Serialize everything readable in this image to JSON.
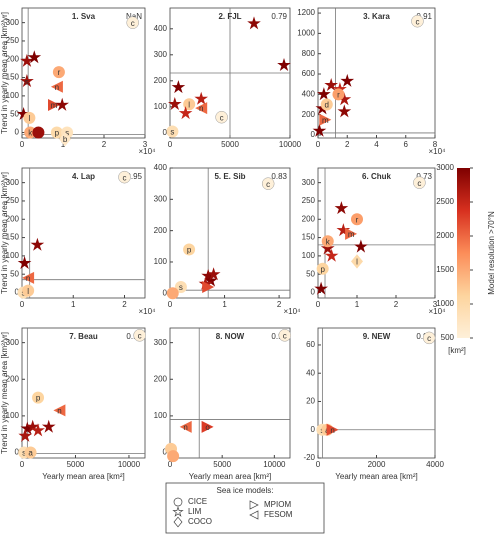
{
  "chart_data": [
    {
      "type": "scatter",
      "title": "1. Sva",
      "annotation": "NaN",
      "ylabel": "Trend in yearly mean area [km²/yr]",
      "xlim": [
        0,
        30000
      ],
      "ylim": [
        -15,
        340
      ],
      "xticks": [
        0,
        {
          "value": 10000,
          "label": "1"
        },
        {
          "value": 20000,
          "label": "2"
        },
        {
          "value": 30000,
          "label": "3"
        }
      ],
      "xmultiplier": "×10⁴",
      "yticks": [
        0,
        50,
        100,
        150,
        200,
        250,
        300
      ],
      "ref_x": 1500,
      "ref_y": -5,
      "points": [
        {
          "x": 27000,
          "y": 300,
          "label": "c",
          "marker": "o",
          "resolution": 500
        },
        {
          "x": 1200,
          "y": 195,
          "marker": "*",
          "resolution": 2800
        },
        {
          "x": 3000,
          "y": 205,
          "marker": "*",
          "resolution": 3000
        },
        {
          "x": 1200,
          "y": 140,
          "label": "s",
          "marker": "*",
          "resolution": 2800
        },
        {
          "x": 400,
          "y": 50,
          "marker": "*",
          "resolution": 3000
        },
        {
          "x": 1800,
          "y": 40,
          "label": "l",
          "marker": "o",
          "resolution": 1200
        },
        {
          "x": 2000,
          "y": 0,
          "label": "k",
          "marker": "o",
          "resolution": 1500
        },
        {
          "x": 4000,
          "y": 0,
          "marker": "o",
          "resolution": 2800
        },
        {
          "x": 9000,
          "y": 165,
          "label": "r",
          "marker": "o",
          "resolution": 1500
        },
        {
          "x": 8500,
          "y": 125,
          "label": "n",
          "marker": "<",
          "resolution": 2000
        },
        {
          "x": 7800,
          "y": 75,
          "label": "m",
          "marker": ">",
          "resolution": 2200
        },
        {
          "x": 9800,
          "y": 75,
          "marker": "*",
          "resolution": 2900
        },
        {
          "x": 8500,
          "y": 0,
          "label": "p",
          "marker": "o",
          "resolution": 1000
        },
        {
          "x": 11000,
          "y": 0,
          "label": "s",
          "marker": "o",
          "resolution": 800
        },
        {
          "x": 10500,
          "y": -18,
          "label": "b",
          "marker": "d",
          "resolution": 700
        }
      ]
    },
    {
      "type": "scatter",
      "title": "2. FJL",
      "annotation": "0.79",
      "xlim": [
        0,
        10000
      ],
      "ylim": [
        -20,
        480
      ],
      "xticks": [
        0,
        5000,
        10000
      ],
      "yticks": [
        0,
        100,
        200,
        300,
        400
      ],
      "ref_x": 5000,
      "ref_y": 230,
      "points": [
        {
          "x": 7000,
          "y": 420,
          "marker": "*",
          "resolution": 2900
        },
        {
          "x": 9500,
          "y": 260,
          "marker": "*",
          "resolution": 3000
        },
        {
          "x": 700,
          "y": 175,
          "marker": "*",
          "resolution": 3000
        },
        {
          "x": 400,
          "y": 110,
          "marker": "*",
          "resolution": 2800
        },
        {
          "x": 1600,
          "y": 110,
          "label": "l",
          "marker": "o",
          "resolution": 1200
        },
        {
          "x": 2600,
          "y": 130,
          "marker": "*",
          "resolution": 2600
        },
        {
          "x": 1300,
          "y": 75,
          "marker": "*",
          "resolution": 2500
        },
        {
          "x": 2600,
          "y": 95,
          "label": "n",
          "marker": "<",
          "resolution": 2000
        },
        {
          "x": 200,
          "y": 5,
          "label": "s",
          "marker": "o",
          "resolution": 900
        },
        {
          "x": 4300,
          "y": 60,
          "label": "c",
          "marker": "o",
          "resolution": 500
        }
      ]
    },
    {
      "type": "scatter",
      "title": "3. Kara",
      "annotation": "0.91",
      "xlim": [
        0,
        80000
      ],
      "ylim": [
        -30,
        1250
      ],
      "xticks": [
        0,
        {
          "value": 20000,
          "label": "2"
        },
        {
          "value": 40000,
          "label": "4"
        },
        {
          "value": 60000,
          "label": "6"
        },
        {
          "value": 80000,
          "label": "8"
        }
      ],
      "xmultiplier": "×10⁴",
      "yticks": [
        0,
        200,
        400,
        600,
        800,
        1000,
        1200
      ],
      "ref_x": 12000,
      "ref_y": 20,
      "points": [
        {
          "x": 68000,
          "y": 1120,
          "label": "c",
          "marker": "o",
          "resolution": 500
        },
        {
          "x": 4000,
          "y": 400,
          "marker": "*",
          "resolution": 3000
        },
        {
          "x": 9000,
          "y": 490,
          "marker": "*",
          "resolution": 2800
        },
        {
          "x": 15000,
          "y": 450,
          "marker": "*",
          "resolution": 2500
        },
        {
          "x": 20000,
          "y": 530,
          "marker": "*",
          "resolution": 3000
        },
        {
          "x": 18000,
          "y": 350,
          "marker": "*",
          "resolution": 2700
        },
        {
          "x": 18000,
          "y": 230,
          "marker": "*",
          "resolution": 2900
        },
        {
          "x": 3000,
          "y": 260,
          "marker": "*",
          "resolution": 3000
        },
        {
          "x": 1000,
          "y": 40,
          "marker": "*",
          "resolution": 3000
        },
        {
          "x": 6000,
          "y": 300,
          "label": "d",
          "marker": "o",
          "resolution": 1200
        },
        {
          "x": 14000,
          "y": 400,
          "label": "r",
          "marker": "o",
          "resolution": 1600
        },
        {
          "x": 5000,
          "y": 150,
          "label": "m",
          "marker": ">",
          "resolution": 2000
        }
      ]
    },
    {
      "type": "scatter",
      "title": "4. Lap",
      "annotation": "0.95",
      "ylabel": "Trend in yearly mean area [km²/yr]",
      "xlim": [
        0,
        24000
      ],
      "ylim": [
        -15,
        340
      ],
      "xticks": [
        0,
        {
          "value": 10000,
          "label": "1"
        },
        {
          "value": 20000,
          "label": "2"
        }
      ],
      "xmultiplier": "×10⁴",
      "yticks": [
        0,
        50,
        100,
        150,
        200,
        250,
        300
      ],
      "ref_x": 1500,
      "ref_y": 35,
      "points": [
        {
          "x": 20000,
          "y": 315,
          "label": "c",
          "marker": "o",
          "resolution": 500
        },
        {
          "x": 3000,
          "y": 130,
          "marker": "*",
          "resolution": 2900
        },
        {
          "x": 500,
          "y": 80,
          "marker": "*",
          "resolution": 3000
        },
        {
          "x": 1200,
          "y": 40,
          "label": "n",
          "marker": "<",
          "resolution": 2000
        },
        {
          "x": 300,
          "y": 0,
          "label": "s",
          "marker": "o",
          "resolution": 900
        },
        {
          "x": 1200,
          "y": 5,
          "label": "l",
          "marker": "o",
          "resolution": 1200
        }
      ]
    },
    {
      "type": "scatter",
      "title": "5. E. Sib",
      "annotation": "0.83",
      "xlim": [
        0,
        22000
      ],
      "ylim": [
        -15,
        400
      ],
      "xticks": [
        0,
        {
          "value": 10000,
          "label": "1"
        },
        {
          "value": 20000,
          "label": "2"
        }
      ],
      "xmultiplier": "×10⁴",
      "yticks": [
        0,
        100,
        200,
        300,
        400
      ],
      "ref_x": 7000,
      "ref_y": 10,
      "points": [
        {
          "x": 18000,
          "y": 350,
          "label": "c",
          "marker": "o",
          "resolution": 500
        },
        {
          "x": 3500,
          "y": 140,
          "label": "p",
          "marker": "o",
          "resolution": 1100
        },
        {
          "x": 7000,
          "y": 55,
          "marker": "*",
          "resolution": 2900
        },
        {
          "x": 7500,
          "y": 40,
          "marker": "*",
          "resolution": 3000
        },
        {
          "x": 6500,
          "y": 30,
          "marker": "*",
          "resolution": 2700
        },
        {
          "x": 8000,
          "y": 60,
          "marker": "*",
          "resolution": 2800
        },
        {
          "x": 2000,
          "y": 20,
          "label": "s",
          "marker": "o",
          "resolution": 900
        },
        {
          "x": 500,
          "y": 0,
          "marker": "o",
          "resolution": 1500
        },
        {
          "x": 7000,
          "y": 20,
          "marker": ">",
          "resolution": 2200
        }
      ]
    },
    {
      "type": "scatter",
      "title": "6. Chuk",
      "annotation": "0.73",
      "xlim": [
        0,
        30000
      ],
      "ylim": [
        -15,
        340
      ],
      "xticks": [
        0,
        {
          "value": 10000,
          "label": "1"
        },
        {
          "value": 20000,
          "label": "2"
        },
        {
          "value": 30000,
          "label": "3"
        }
      ],
      "xmultiplier": "×10⁴",
      "yticks": [
        0,
        50,
        100,
        150,
        200,
        250,
        300
      ],
      "ref_x": 1800,
      "ref_y": 130,
      "points": [
        {
          "x": 26000,
          "y": 300,
          "label": "c",
          "marker": "o",
          "resolution": 500
        },
        {
          "x": 6000,
          "y": 230,
          "marker": "*",
          "resolution": 2900
        },
        {
          "x": 11000,
          "y": 125,
          "marker": "*",
          "resolution": 3000
        },
        {
          "x": 6500,
          "y": 170,
          "marker": "*",
          "resolution": 2600
        },
        {
          "x": 2500,
          "y": 120,
          "marker": "*",
          "resolution": 2800
        },
        {
          "x": 3500,
          "y": 100,
          "marker": "*",
          "resolution": 2500
        },
        {
          "x": 800,
          "y": 10,
          "marker": "*",
          "resolution": 3000
        },
        {
          "x": 10000,
          "y": 200,
          "label": "r",
          "marker": "o",
          "resolution": 1600
        },
        {
          "x": 10000,
          "y": 85,
          "label": "l",
          "marker": "d",
          "resolution": 1000
        },
        {
          "x": 1200,
          "y": 65,
          "label": "p",
          "marker": "o",
          "resolution": 1100
        },
        {
          "x": 2500,
          "y": 140,
          "label": "k",
          "marker": "o",
          "resolution": 1500
        },
        {
          "x": 8500,
          "y": 160,
          "label": "m",
          "marker": ">",
          "resolution": 2000
        }
      ]
    },
    {
      "type": "scatter",
      "title": "7. Beau",
      "annotation": "0.95",
      "ylabel": "Trend in yearly mean area [km²/yr]",
      "xlabel": "Yearly mean area [km²]",
      "xlim": [
        0,
        11500
      ],
      "ylim": [
        -15,
        340
      ],
      "xticks": [
        0,
        5000,
        10000
      ],
      "yticks": [
        0,
        100,
        200,
        300
      ],
      "ref_x": 500,
      "ref_y": -3,
      "points": [
        {
          "x": 11000,
          "y": 320,
          "label": "c",
          "marker": "o",
          "resolution": 500
        },
        {
          "x": 1500,
          "y": 150,
          "label": "p",
          "marker": "o",
          "resolution": 1100
        },
        {
          "x": 3500,
          "y": 115,
          "label": "n",
          "marker": "<",
          "resolution": 2000
        },
        {
          "x": 500,
          "y": 65,
          "marker": "*",
          "resolution": 3000
        },
        {
          "x": 1000,
          "y": 70,
          "marker": "*",
          "resolution": 2800
        },
        {
          "x": 2500,
          "y": 70,
          "marker": "*",
          "resolution": 2900
        },
        {
          "x": 1500,
          "y": 60,
          "marker": "*",
          "resolution": 2600
        },
        {
          "x": 300,
          "y": 45,
          "marker": "*",
          "resolution": 2700
        },
        {
          "x": 200,
          "y": 0,
          "label": "s",
          "marker": "o",
          "resolution": 900
        },
        {
          "x": 800,
          "y": 0,
          "label": "a",
          "marker": "o",
          "resolution": 1200
        }
      ]
    },
    {
      "type": "scatter",
      "title": "8. NOW",
      "annotation": "0.98",
      "xlabel": "Yearly mean area [km²]",
      "xlim": [
        0,
        11500
      ],
      "ylim": [
        -15,
        340
      ],
      "xticks": [
        0,
        5000,
        10000
      ],
      "yticks": [
        0,
        100,
        200,
        300
      ],
      "ref_x": 2800,
      "ref_y": 90,
      "points": [
        {
          "x": 11000,
          "y": 320,
          "label": "c",
          "marker": "o",
          "resolution": 500
        },
        {
          "x": 1500,
          "y": 70,
          "label": "n",
          "marker": "<",
          "resolution": 2000
        },
        {
          "x": 3600,
          "y": 70,
          "label": "o",
          "marker": ">",
          "resolution": 2300
        },
        {
          "x": 100,
          "y": 10,
          "marker": "o",
          "resolution": 1200
        },
        {
          "x": 300,
          "y": -10,
          "marker": "o",
          "resolution": 1500
        }
      ]
    },
    {
      "type": "scatter",
      "title": "9. NEW",
      "annotation": "0.99",
      "xlabel": "Yearly mean area [km²]",
      "xlim": [
        0,
        4000
      ],
      "ylim": [
        -20,
        72
      ],
      "xticks": [
        0,
        2000,
        4000
      ],
      "yticks": [
        -20,
        0,
        20,
        40,
        60
      ],
      "ref_x": 150,
      "ref_y": 0,
      "points": [
        {
          "x": 3800,
          "y": 65,
          "label": "c",
          "marker": "o",
          "resolution": 500
        },
        {
          "x": 150,
          "y": 0,
          "label": "s",
          "marker": "o",
          "resolution": 900
        },
        {
          "x": 320,
          "y": 0,
          "label": "a",
          "marker": "o",
          "resolution": 1200
        },
        {
          "x": 500,
          "y": 0,
          "label": "n",
          "marker": ">",
          "resolution": 2200
        }
      ]
    },
    {
      "type": "colorbar",
      "label": "Model resolution >70°N",
      "unit": "[km²]",
      "lim": [
        500,
        3000
      ],
      "ticks": [
        500,
        1000,
        1500,
        2000,
        2500,
        3000
      ],
      "colors": [
        "#fef0d9",
        "#fdd49e",
        "#fc8d59",
        "#d7301f",
        "#7f0000"
      ]
    }
  ],
  "legend": {
    "title": "Sea ice models:",
    "entries": [
      {
        "name": "CICE",
        "marker": "o"
      },
      {
        "name": "LIM",
        "marker": "*"
      },
      {
        "name": "COCO",
        "marker": "d"
      },
      {
        "name": "MPIOM",
        "marker": ">"
      },
      {
        "name": "FESOM",
        "marker": "<"
      }
    ]
  }
}
